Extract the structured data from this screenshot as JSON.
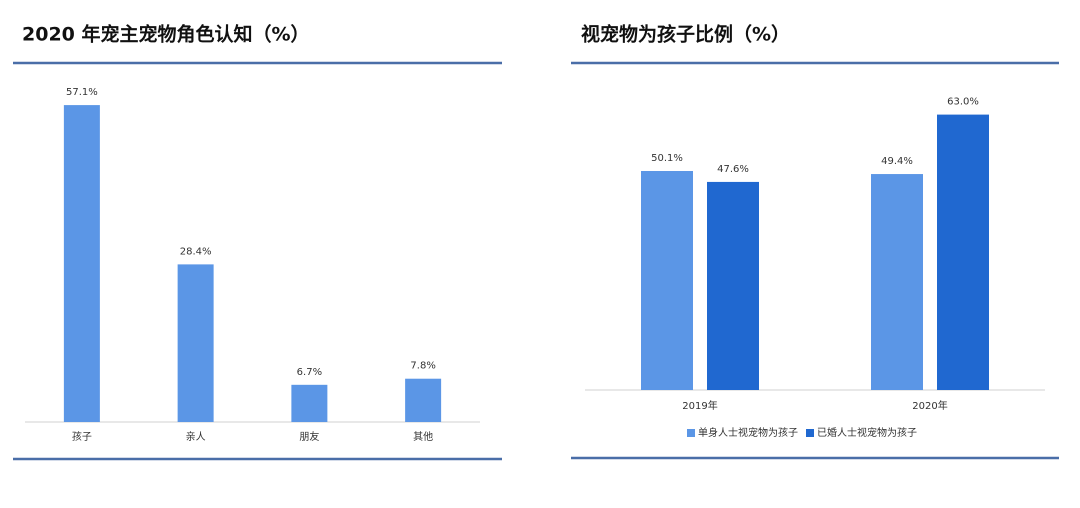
{
  "chart_data": [
    {
      "type": "bar",
      "title": "2020 年宠主宠物角色认知（%）",
      "categories": [
        "孩子",
        "亲人",
        "朋友",
        "其他"
      ],
      "values": [
        57.1,
        28.4,
        6.7,
        7.8
      ],
      "value_labels": [
        "57.1%",
        "28.4%",
        "6.7%",
        "7.8%"
      ],
      "color": "#5b96e6",
      "ylim": [
        0,
        60
      ]
    },
    {
      "type": "grouped_bar",
      "title": "视宠物为孩子比例（%）",
      "categories": [
        "2019年",
        "2020年"
      ],
      "series": [
        {
          "name": "单身人士视宠物为孩子",
          "color": "#5b96e6",
          "values": [
            50.1,
            49.4
          ],
          "value_labels": [
            "50.1%",
            "49.4%"
          ]
        },
        {
          "name": "已婚人士视宠物为孩子",
          "color": "#2068d0",
          "values": [
            47.6,
            63.0
          ],
          "value_labels": [
            "47.6%",
            "63.0%"
          ]
        }
      ],
      "ylim": [
        0,
        70
      ],
      "legend": "bottom"
    }
  ]
}
